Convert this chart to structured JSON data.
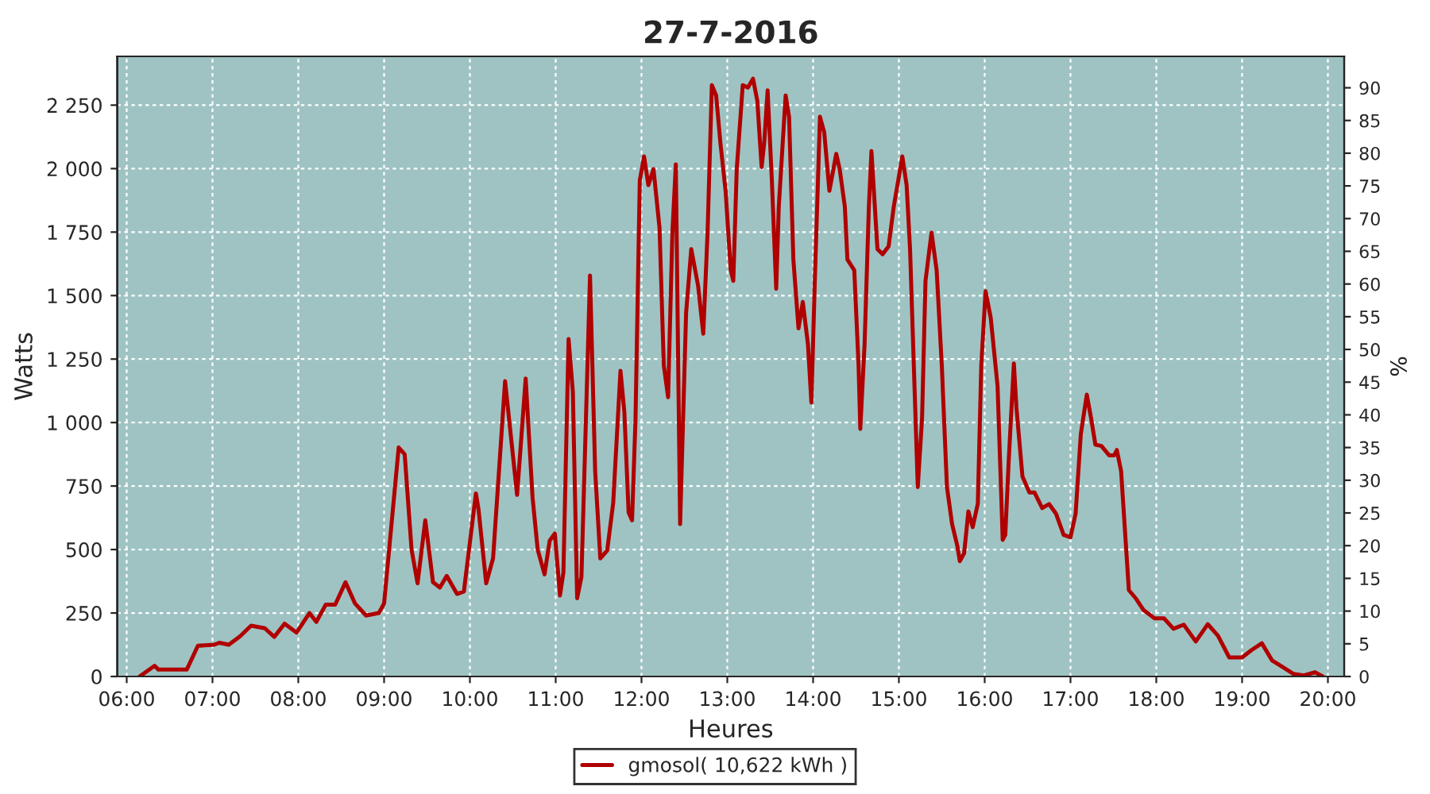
{
  "chart_data": {
    "type": "line",
    "title": "27-7-2016",
    "xlabel": "Heures",
    "ylabel": "Watts",
    "y2label": "%",
    "xlim": [
      5.89,
      20.19
    ],
    "xticks": [
      {
        "value": 6,
        "label": "06:00"
      },
      {
        "value": 7,
        "label": "07:00"
      },
      {
        "value": 8,
        "label": "08:00"
      },
      {
        "value": 9,
        "label": "09:00"
      },
      {
        "value": 10,
        "label": "10:00"
      },
      {
        "value": 11,
        "label": "11:00"
      },
      {
        "value": 12,
        "label": "12:00"
      },
      {
        "value": 13,
        "label": "13:00"
      },
      {
        "value": 14,
        "label": "14:00"
      },
      {
        "value": 15,
        "label": "15:00"
      },
      {
        "value": 16,
        "label": "16:00"
      },
      {
        "value": 17,
        "label": "17:00"
      },
      {
        "value": 18,
        "label": "18:00"
      },
      {
        "value": 19,
        "label": "19:00"
      },
      {
        "value": 20,
        "label": "20:00"
      }
    ],
    "ylim": [
      0,
      2442
    ],
    "yticks": [
      0,
      250,
      500,
      750,
      {
        "value": 1000,
        "label": "1 000"
      },
      {
        "value": 1250,
        "label": "1 250"
      },
      {
        "value": 1500,
        "label": "1 500"
      },
      {
        "value": 1750,
        "label": "1 750"
      },
      {
        "value": 2000,
        "label": "2 000"
      },
      {
        "value": 2250,
        "label": "2 250"
      }
    ],
    "y2lim": [
      0,
      94.8
    ],
    "y2ticks": [
      0,
      5,
      10,
      15,
      20,
      25,
      30,
      35,
      40,
      45,
      50,
      55,
      60,
      65,
      70,
      75,
      80,
      85,
      90
    ],
    "grid": true,
    "legend": "bottom",
    "marker": "none",
    "line_style": "solid",
    "series": [
      {
        "name": "gmosol( 10,622 kWh )",
        "color": "#b00000",
        "x": [
          6.15,
          6.325,
          6.37,
          6.7,
          6.83,
          7.02,
          7.08,
          7.19,
          7.32,
          7.45,
          7.61,
          7.72,
          7.84,
          7.98,
          8.13,
          8.21,
          8.32,
          8.43,
          8.55,
          8.66,
          8.79,
          8.94,
          9.0,
          9.17,
          9.24,
          9.32,
          9.39,
          9.48,
          9.57,
          9.65,
          9.73,
          9.85,
          9.93,
          10.07,
          10.1,
          10.19,
          10.27,
          10.41,
          10.55,
          10.65,
          10.73,
          10.79,
          10.87,
          10.93,
          10.99,
          11.05,
          11.09,
          11.15,
          11.2,
          11.25,
          11.3,
          11.4,
          11.46,
          11.52,
          11.6,
          11.67,
          11.755,
          11.8,
          11.85,
          11.89,
          11.93,
          11.98,
          12.03,
          12.08,
          12.14,
          12.21,
          12.26,
          12.31,
          12.36,
          12.4,
          12.45,
          12.52,
          12.58,
          12.66,
          12.72,
          12.77,
          12.82,
          12.87,
          12.92,
          12.98,
          13.04,
          13.07,
          13.11,
          13.18,
          13.24,
          13.3,
          13.35,
          13.4,
          13.43,
          13.47,
          13.52,
          13.57,
          13.6,
          13.68,
          13.72,
          13.77,
          13.83,
          13.88,
          13.94,
          13.98,
          14.02,
          14.08,
          14.13,
          14.19,
          14.27,
          14.31,
          14.37,
          14.4,
          14.48,
          14.53,
          14.55,
          14.6,
          14.65,
          14.68,
          14.75,
          14.81,
          14.88,
          14.94,
          15.04,
          15.09,
          15.13,
          15.19,
          15.22,
          15.27,
          15.31,
          15.38,
          15.44,
          15.5,
          15.56,
          15.62,
          15.68,
          15.71,
          15.76,
          15.81,
          15.86,
          15.92,
          15.96,
          16.01,
          16.07,
          16.15,
          16.21,
          16.24,
          16.28,
          16.34,
          16.37,
          16.44,
          16.52,
          16.58,
          16.67,
          16.75,
          16.83,
          16.92,
          17.0,
          17.06,
          17.12,
          17.19,
          17.24,
          17.29,
          17.36,
          17.45,
          17.51,
          17.54,
          17.59,
          17.68,
          17.76,
          17.85,
          17.98,
          18.09,
          18.2,
          18.32,
          18.46,
          18.6,
          18.72,
          18.85,
          19.0,
          19.11,
          19.23,
          19.35,
          19.47,
          19.6,
          19.72,
          19.85,
          19.94
        ],
        "values": [
          0,
          42,
          27,
          27,
          121,
          125,
          133,
          125,
          158,
          200,
          190,
          156,
          208,
          173,
          250,
          215,
          283,
          283,
          371,
          288,
          240,
          250,
          288,
          902,
          875,
          500,
          367,
          615,
          371,
          350,
          396,
          325,
          335,
          721,
          660,
          367,
          465,
          1163,
          715,
          1173,
          706,
          500,
          402,
          535,
          563,
          319,
          410,
          1329,
          1121,
          308,
          392,
          1579,
          808,
          465,
          496,
          683,
          1204,
          1042,
          646,
          615,
          1010,
          1954,
          2048,
          1935,
          1998,
          1767,
          1225,
          1100,
          1748,
          2017,
          600,
          1433,
          1683,
          1538,
          1350,
          1748,
          2329,
          2288,
          2100,
          1913,
          1600,
          1558,
          1998,
          2329,
          2319,
          2354,
          2267,
          2006,
          2100,
          2308,
          1948,
          1527,
          1850,
          2288,
          2204,
          1642,
          1371,
          1475,
          1308,
          1079,
          1558,
          2204,
          2142,
          1913,
          2058,
          1998,
          1850,
          1642,
          1600,
          1225,
          975,
          1308,
          1850,
          2069,
          1683,
          1663,
          1694,
          1850,
          2048,
          1935,
          1683,
          1058,
          746,
          1017,
          1558,
          1748,
          1600,
          1225,
          746,
          600,
          516,
          454,
          485,
          650,
          588,
          681,
          1225,
          1517,
          1413,
          1144,
          538,
          558,
          850,
          1233,
          1058,
          788,
          725,
          725,
          663,
          679,
          642,
          558,
          548,
          642,
          954,
          1110,
          1017,
          913,
          908,
          871,
          871,
          892,
          808,
          340,
          308,
          262,
          229,
          229,
          188,
          204,
          138,
          206,
          160,
          75,
          75,
          104,
          131,
          63,
          38,
          10,
          4,
          17,
          0
        ]
      }
    ]
  }
}
